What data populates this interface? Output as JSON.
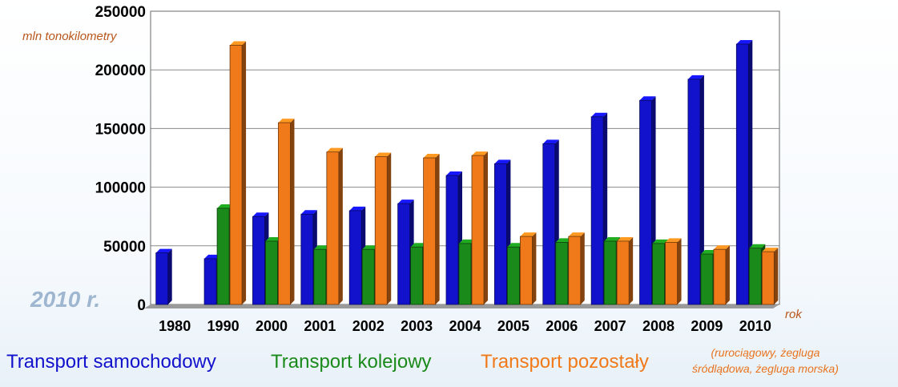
{
  "chart_data": {
    "type": "bar",
    "title": "",
    "ylabel": "mln tonokilometry",
    "xlabel": "rok",
    "annotation": "2010 r.",
    "ylim": [
      0,
      250000
    ],
    "yticks": [
      "0",
      "50000",
      "100000",
      "150000",
      "200000",
      "250000"
    ],
    "categories": [
      "1980",
      "1990",
      "2000",
      "2001",
      "2002",
      "2003",
      "2004",
      "2005",
      "2006",
      "2007",
      "2008",
      "2009",
      "2010"
    ],
    "grid": true,
    "legend_position": "bottom",
    "series": [
      {
        "name": "Transport samochodowy",
        "color": "#1212cc",
        "values": [
          44000,
          39000,
          75000,
          77000,
          80000,
          86000,
          110000,
          120000,
          137000,
          160000,
          174000,
          192000,
          222000
        ]
      },
      {
        "name": "Transport kolejowy",
        "color": "#1a8a1a",
        "values": [
          0,
          82000,
          54000,
          47000,
          47000,
          49000,
          52000,
          49000,
          53000,
          54000,
          52000,
          43000,
          48000
        ]
      },
      {
        "name": "Transport pozostały",
        "color": "#f07a1a",
        "values": [
          0,
          221000,
          155000,
          130000,
          126000,
          125000,
          127000,
          58000,
          58000,
          54000,
          53000,
          47000,
          45000
        ]
      }
    ],
    "legend_note": [
      "(rurociągowy, żegluga",
      "śródlądowa, żegluga morska)"
    ]
  }
}
